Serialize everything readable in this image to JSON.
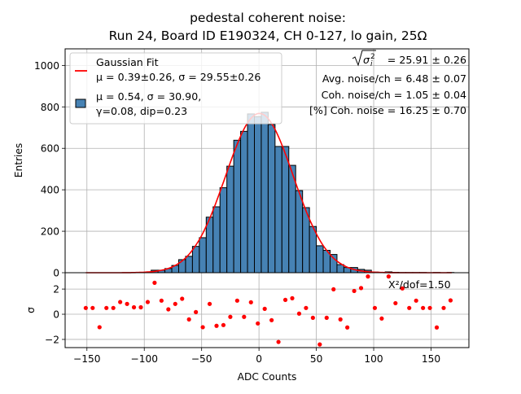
{
  "chart_data": [
    {
      "type": "bar",
      "panel": "main",
      "title": "pedestal coherent noise:\nRun 24, Board ID E190324, CH 0-127, lo gain, 25Ω",
      "title_lines": [
        "pedestal coherent noise:",
        "Run 24, Board ID E190324, CH 0-127, lo gain, 25Ω"
      ],
      "xlabel": "",
      "ylabel": "Entries",
      "xlim": [
        -169,
        183
      ],
      "ylim": [
        0,
        1080
      ],
      "grid": true,
      "yticks": [
        0,
        200,
        400,
        600,
        800,
        1000
      ],
      "xticks": [
        -150,
        -100,
        -50,
        0,
        50,
        100,
        150
      ],
      "bin_width": 6,
      "bin_centers": [
        -151,
        -145,
        -139,
        -133,
        -127,
        -121,
        -115,
        -109,
        -103,
        -97,
        -91,
        -85,
        -79,
        -73,
        -67,
        -61,
        -55,
        -49,
        -43,
        -37,
        -31,
        -25,
        -19,
        -13,
        -7,
        -1,
        5,
        11,
        17,
        23,
        29,
        35,
        41,
        47,
        53,
        59,
        65,
        71,
        77,
        83,
        89,
        95,
        101,
        107,
        113,
        119,
        125,
        131,
        137,
        143,
        149,
        155,
        161,
        167
      ],
      "values": [
        0,
        0,
        0,
        0,
        0,
        0,
        0,
        0,
        1,
        2,
        12,
        12,
        20,
        35,
        63,
        79,
        127,
        169,
        268,
        318,
        410,
        514,
        639,
        682,
        766,
        753,
        774,
        715,
        609,
        609,
        518,
        396,
        314,
        223,
        130,
        108,
        88,
        39,
        25,
        25,
        16,
        12,
        3,
        1,
        4,
        2,
        1,
        1,
        1,
        1,
        0,
        1,
        0,
        1
      ],
      "bar_color": "#4682b4",
      "bar_edge_color": "#000000",
      "fit": {
        "type": "gaussian",
        "mu": 0.39,
        "sigma": 29.55,
        "color": "#ff0000",
        "x_range": [
          -151,
          168
        ]
      },
      "legend": {
        "placement": "upper-left",
        "entries": [
          {
            "kind": "line",
            "color": "#ff0000",
            "lines": [
              "Gaussian Fit",
              "μ = 0.39±0.26, σ = 29.55±0.26"
            ]
          },
          {
            "kind": "patch",
            "color": "#4682b4",
            "lines": [
              "μ = 0.54, σ = 30.90,",
              "γ=0.08, dip=0.23"
            ]
          }
        ]
      },
      "annotations": {
        "placement": "upper-right",
        "lines": [
          {
            "prefix": "√σ",
            "sub": "i",
            "sup": "2",
            "text": " = 25.91 ± 0.26"
          },
          {
            "text": "Avg. noise/ch = 6.48 ± 0.07"
          },
          {
            "text": "Coh. noise/ch = 1.05 ± 0.04"
          },
          {
            "text": "[%] Coh. noise = 16.25  ± 0.70"
          }
        ]
      }
    },
    {
      "type": "scatter",
      "panel": "residuals",
      "xlabel": "ADC Counts",
      "ylabel": "σ",
      "xlim": [
        -169,
        183
      ],
      "ylim": [
        -2.65,
        3.3
      ],
      "grid": true,
      "yticks": [
        -2,
        0,
        2
      ],
      "xticks": [
        -150,
        -100,
        -50,
        0,
        50,
        100,
        150
      ],
      "xtick_labels": [
        "−150",
        "−100",
        "−50",
        "0",
        "50",
        "100",
        "150"
      ],
      "ytick_labels": [
        "−2",
        "0",
        "2"
      ],
      "marker_color": "#ff0000",
      "x": [
        -151,
        -145,
        -139,
        -133,
        -127,
        -121,
        -115,
        -109,
        -103,
        -97,
        -91,
        -85,
        -79,
        -73,
        -67,
        -61,
        -55,
        -49,
        -43,
        -37,
        -31,
        -25,
        -19,
        -13,
        -7,
        -1,
        5,
        11,
        17,
        23,
        29,
        35,
        41,
        47,
        53,
        59,
        65,
        71,
        77,
        83,
        89,
        95,
        101,
        107,
        113,
        119,
        125,
        131,
        137,
        143,
        149,
        155,
        161,
        167
      ],
      "y": [
        0.5,
        0.5,
        -1.03,
        0.5,
        0.5,
        0.97,
        0.82,
        0.55,
        0.55,
        0.97,
        2.5,
        1.08,
        0.39,
        0.82,
        1.23,
        -0.41,
        0.17,
        -1.03,
        0.82,
        -0.92,
        -0.86,
        -0.21,
        1.08,
        -0.21,
        0.95,
        -0.73,
        0.43,
        -0.47,
        -2.2,
        1.14,
        1.27,
        0.05,
        0.5,
        -0.28,
        -2.4,
        -0.28,
        1.98,
        -0.41,
        -1.05,
        1.85,
        2.08,
        3.0,
        0.5,
        -0.34,
        3.0,
        0.88,
        2.05,
        0.5,
        1.08,
        0.5,
        0.5,
        -1.05,
        0.5,
        1.1
      ],
      "annotation": "X²/dof=1.50"
    }
  ]
}
